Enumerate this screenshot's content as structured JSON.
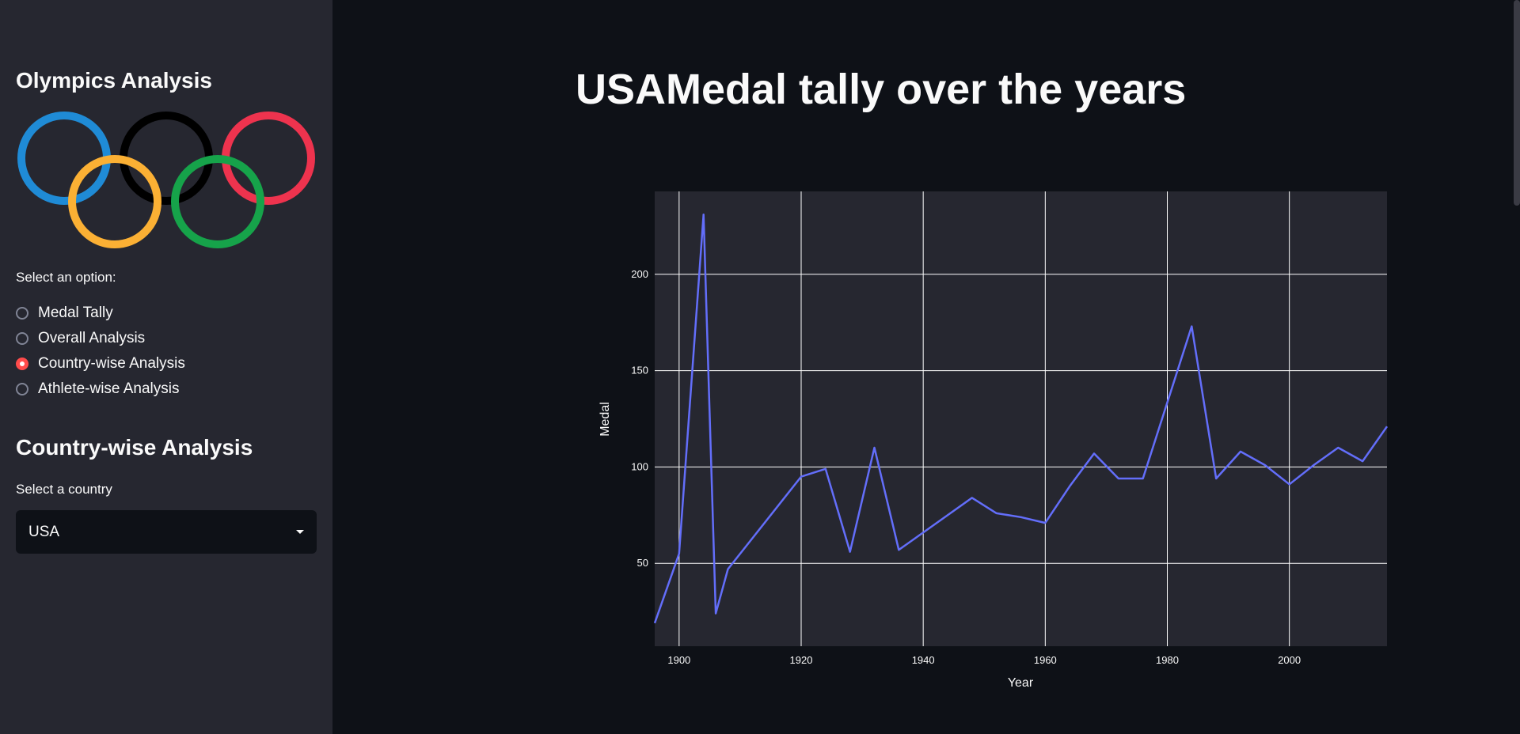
{
  "sidebar": {
    "title": "Olympics Analysis",
    "select_label": "Select an option:",
    "options": [
      {
        "label": "Medal Tally",
        "selected": false
      },
      {
        "label": "Overall Analysis",
        "selected": false
      },
      {
        "label": "Country-wise Analysis",
        "selected": true
      },
      {
        "label": "Athlete-wise Analysis",
        "selected": false
      }
    ],
    "section_title": "Country-wise Analysis",
    "country_label": "Select a country",
    "country_value": "USA"
  },
  "main": {
    "title": "USAMedal tally over the years"
  },
  "colors": {
    "ring_blue": "#1f8bd6",
    "ring_yellow": "#fbb034",
    "ring_black": "#000000",
    "ring_green": "#16a34a",
    "ring_red": "#ee334e",
    "accent": "#ff4b4b",
    "line": "#636efa"
  },
  "chart_data": {
    "type": "line",
    "xlabel": "Year",
    "ylabel": "Medal",
    "xlim": [
      1896,
      2016
    ],
    "ylim": [
      7,
      243
    ],
    "xticks": [
      1900,
      1920,
      1940,
      1960,
      1980,
      2000
    ],
    "yticks": [
      50,
      100,
      150,
      200
    ],
    "grid": true,
    "series": [
      {
        "x": [
          1896,
          1900,
          1904,
          1906,
          1908,
          1912,
          1920,
          1924,
          1928,
          1932,
          1936,
          1948,
          1952,
          1956,
          1960,
          1964,
          1968,
          1972,
          1976,
          1984,
          1988,
          1992,
          1996,
          2000,
          2004,
          2008,
          2012,
          2016
        ],
        "y": [
          19,
          55,
          231,
          24,
          47,
          63,
          95,
          99,
          56,
          110,
          57,
          84,
          76,
          74,
          71,
          90,
          107,
          94,
          94,
          173,
          94,
          108,
          101,
          91,
          101,
          110,
          103,
          121
        ]
      }
    ]
  }
}
